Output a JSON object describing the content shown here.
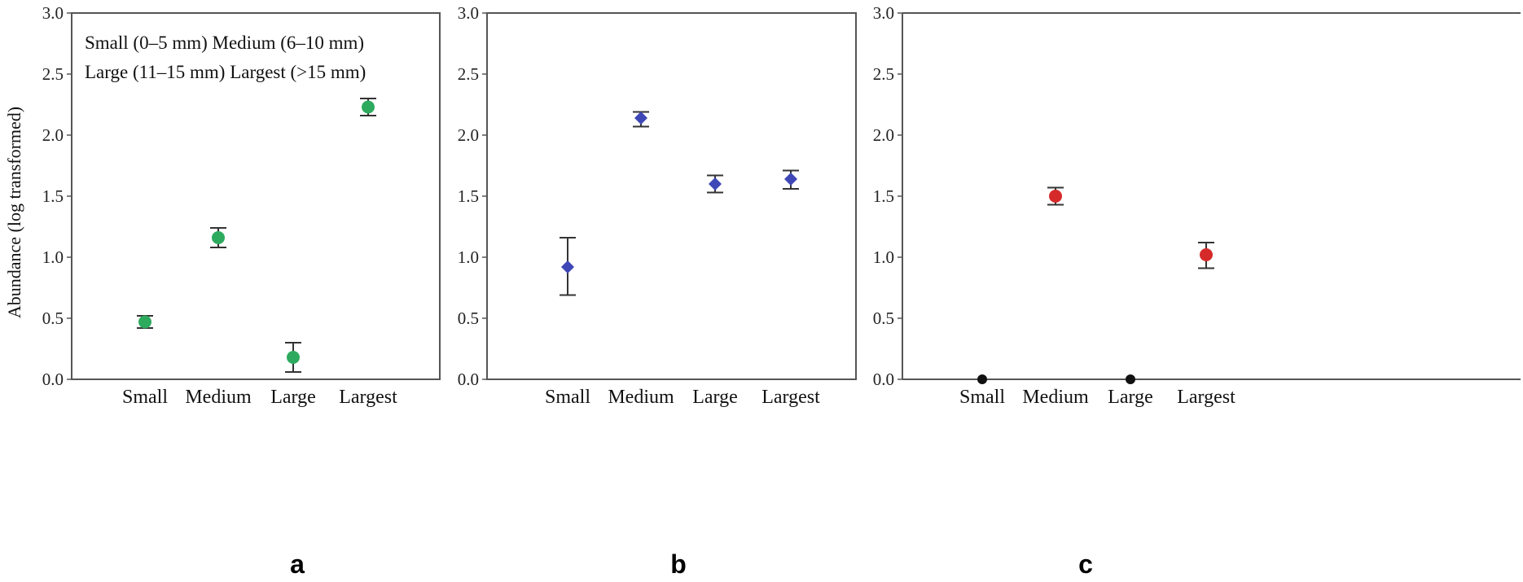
{
  "chart_data": [
    {
      "type": "scatter",
      "panel_label": "a",
      "ylabel": "Abundance (log transformed)",
      "ylim": [
        0,
        3
      ],
      "yticks": [
        "0.0",
        "0.5",
        "1.0",
        "1.5",
        "2.0",
        "2.5",
        "3.0"
      ],
      "categories": [
        "Small",
        "Medium",
        "Large",
        "Largest"
      ],
      "marker": "circle",
      "color": "#2eaa5e",
      "values": [
        0.47,
        1.16,
        0.18,
        2.23
      ],
      "err_low": [
        0.42,
        1.08,
        0.06,
        2.16
      ],
      "err_high": [
        0.52,
        1.24,
        0.3,
        2.3
      ],
      "annotation": [
        "Small (0–5 mm) Medium (6–10 mm)",
        "Large (11–15 mm) Largest (>15 mm)"
      ]
    },
    {
      "type": "scatter",
      "panel_label": "b",
      "ylim": [
        0,
        3
      ],
      "yticks": [
        "0.0",
        "0.5",
        "1.0",
        "1.5",
        "2.0",
        "2.5",
        "3.0"
      ],
      "categories": [
        "Small",
        "Medium",
        "Large",
        "Largest"
      ],
      "marker": "diamond",
      "color": "#3f47b6",
      "values": [
        0.92,
        2.14,
        1.6,
        1.64
      ],
      "err_low": [
        0.69,
        2.07,
        1.53,
        1.56
      ],
      "err_high": [
        1.16,
        2.19,
        1.67,
        1.71
      ]
    },
    {
      "type": "scatter",
      "panel_label": "c",
      "ylim": [
        0,
        3
      ],
      "yticks": [
        "0.0",
        "0.5",
        "1.0",
        "1.5",
        "2.0",
        "2.5",
        "3.0"
      ],
      "categories": [
        "Small",
        "Medium",
        "Large",
        "Largest"
      ],
      "marker": "circle",
      "color": "#d62a2a",
      "zero_color": "#111111",
      "values": [
        0.0,
        1.5,
        0.0,
        1.02
      ],
      "err_low": [
        null,
        1.43,
        null,
        0.91
      ],
      "err_high": [
        null,
        1.57,
        null,
        1.12
      ]
    }
  ]
}
